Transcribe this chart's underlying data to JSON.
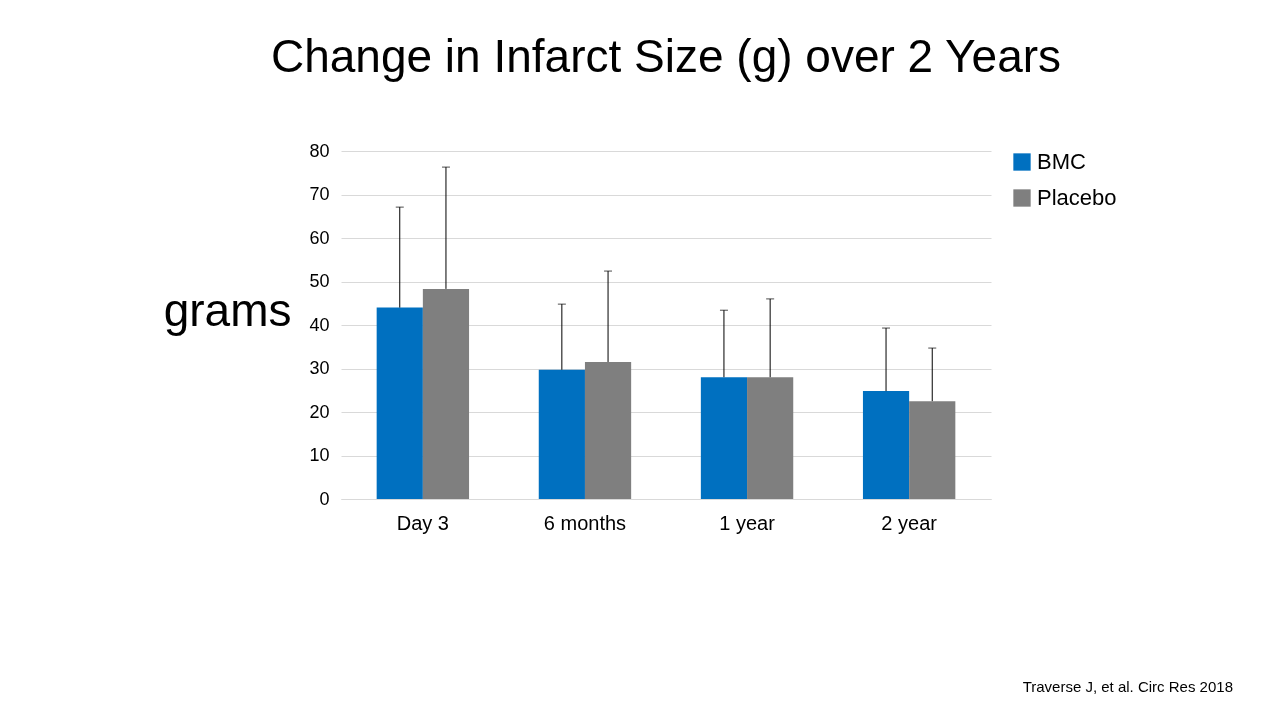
{
  "chart_data": {
    "type": "bar",
    "title": "Change in Infarct Size (g) over 2 Years",
    "ylabel": "grams",
    "categories": [
      "Day 3",
      "6 months",
      "1 year",
      "2 year"
    ],
    "series": [
      {
        "name": "BMC",
        "color": "#0070c0",
        "values": [
          44,
          29.7,
          28,
          24.8
        ],
        "errors": [
          [
            44,
            67.1
          ],
          [
            29.7,
            44.8
          ],
          [
            28,
            43.4
          ],
          [
            24.8,
            39.3
          ]
        ]
      },
      {
        "name": "Placebo",
        "color": "#7f7f7f",
        "values": [
          48.3,
          31.5,
          28,
          22.5
        ],
        "errors": [
          [
            48.3,
            76.3
          ],
          [
            31.5,
            52.4
          ],
          [
            28,
            46
          ],
          [
            22.5,
            34.7
          ]
        ]
      }
    ],
    "ylim": [
      0,
      80
    ],
    "yticks": [
      0,
      10,
      20,
      30,
      40,
      50,
      60,
      70,
      80
    ],
    "grid": "y",
    "legend": "right",
    "annotations": [
      "Traverse J, et al. Circ Res 2018"
    ]
  }
}
